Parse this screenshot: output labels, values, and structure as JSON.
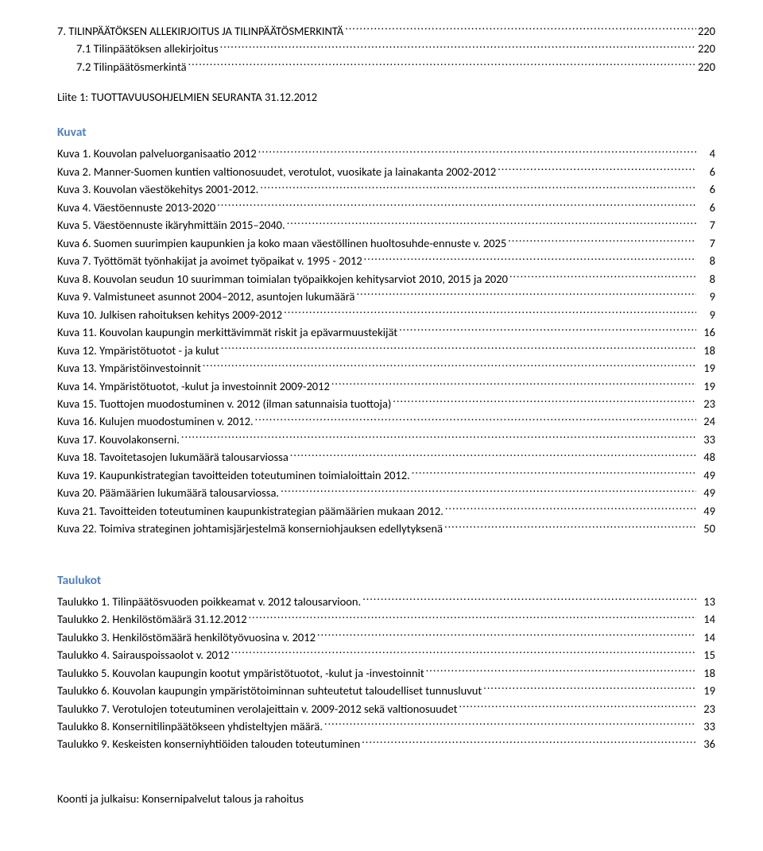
{
  "toc_top": [
    {
      "indent": 0,
      "label": "7. TILINPÄÄTÖKSEN ALLEKIRJOITUS JA TILINPÄÄTÖSMERKINTÄ",
      "page": "220"
    },
    {
      "indent": 1,
      "label": "7.1 Tilinpäätöksen allekirjoitus",
      "page": "220"
    },
    {
      "indent": 1,
      "label": "7.2 Tilinpäätösmerkintä",
      "page": "220"
    }
  ],
  "attachment": "Liite 1: TUOTTAVUUSOHJELMIEN SEURANTA 31.12.2012",
  "headings": {
    "kuvat": "Kuvat",
    "taulukot": "Taulukot"
  },
  "kuvat": [
    {
      "label": "Kuva 1. Kouvolan palveluorganisaatio 2012",
      "page": "4"
    },
    {
      "label": "Kuva 2. Manner-Suomen kuntien valtionosuudet, verotulot, vuosikate ja lainakanta 2002-2012",
      "page": "6"
    },
    {
      "label": "Kuva 3. Kouvolan väestökehitys 2001-2012.",
      "page": "6"
    },
    {
      "label": "Kuva 4. Väestöennuste 2013-2020",
      "page": "6"
    },
    {
      "label": "Kuva 5. Väestöennuste ikäryhmittäin 2015–2040.",
      "page": "7"
    },
    {
      "label": "Kuva 6. Suomen suurimpien kaupunkien ja koko maan väestöllinen huoltosuhde-ennuste v. 2025",
      "page": "7"
    },
    {
      "label": "Kuva 7. Työttömät työnhakijat ja avoimet työpaikat v. 1995 - 2012",
      "page": "8"
    },
    {
      "label": "Kuva 8. Kouvolan seudun 10 suurimman toimialan työpaikkojen kehitysarviot 2010, 2015 ja 2020",
      "page": "8"
    },
    {
      "label": "Kuva 9. Valmistuneet asunnot 2004–2012, asuntojen lukumäärä",
      "page": "9"
    },
    {
      "label": "Kuva 10. Julkisen rahoituksen kehitys 2009-2012",
      "page": "9"
    },
    {
      "label": "Kuva 11. Kouvolan kaupungin merkittävimmät riskit ja epävarmuustekijät",
      "page": "16"
    },
    {
      "label": "Kuva 12. Ympäristötuotot - ja kulut",
      "page": "18"
    },
    {
      "label": "Kuva 13. Ympäristöinvestoinnit",
      "page": "19"
    },
    {
      "label": "Kuva 14. Ympäristötuotot, -kulut ja investoinnit 2009-2012",
      "page": "19"
    },
    {
      "label": "Kuva 15. Tuottojen muodostuminen v. 2012 (ilman satunnaisia tuottoja)",
      "page": "23"
    },
    {
      "label": "Kuva 16. Kulujen muodostuminen v. 2012.",
      "page": "24"
    },
    {
      "label": "Kuva 17. Kouvolakonserni.",
      "page": "33"
    },
    {
      "label": "Kuva 18. Tavoitetasojen lukumäärä talousarviossa",
      "page": "48"
    },
    {
      "label": "Kuva 19. Kaupunkistrategian tavoitteiden toteutuminen toimialoittain 2012.",
      "page": "49"
    },
    {
      "label": "Kuva 20. Päämäärien lukumäärä talousarviossa.",
      "page": "49"
    },
    {
      "label": "Kuva 21. Tavoitteiden toteutuminen kaupunkistrategian päämäärien mukaan 2012.",
      "page": "49"
    },
    {
      "label": "Kuva 22. Toimiva strateginen johtamisjärjestelmä konserniohjauksen edellytyksenä",
      "page": "50"
    }
  ],
  "taulukot": [
    {
      "label": "Taulukko 1. Tilinpäätösvuoden poikkeamat v. 2012 talousarvioon.",
      "page": "13"
    },
    {
      "label": "Taulukko 2. Henkilöstömäärä 31.12.2012",
      "page": "14"
    },
    {
      "label": "Taulukko 3. Henkilöstömäärä henkilötyövuosina v. 2012",
      "page": "14"
    },
    {
      "label": "Taulukko 4. Sairauspoissaolot v. 2012",
      "page": "15"
    },
    {
      "label": "Taulukko 5. Kouvolan kaupungin kootut ympäristötuotot, -kulut ja -investoinnit",
      "page": "18"
    },
    {
      "label": "Taulukko 6. Kouvolan kaupungin ympäristötoiminnan suhteutetut taloudelliset tunnusluvut",
      "page": "19"
    },
    {
      "label": "Taulukko 7. Verotulojen toteutuminen verolajeittain v. 2009-2012 sekä valtionosuudet",
      "page": "23"
    },
    {
      "label": "Taulukko 8. Konsernitilinpäätökseen yhdisteltyjen määrä.",
      "page": "33"
    },
    {
      "label": "Taulukko 9. Keskeisten konserniyhtiöiden talouden toteutuminen",
      "page": "36"
    }
  ],
  "footer": "Koonti ja julkaisu: Konsernipalvelut talous ja rahoitus"
}
